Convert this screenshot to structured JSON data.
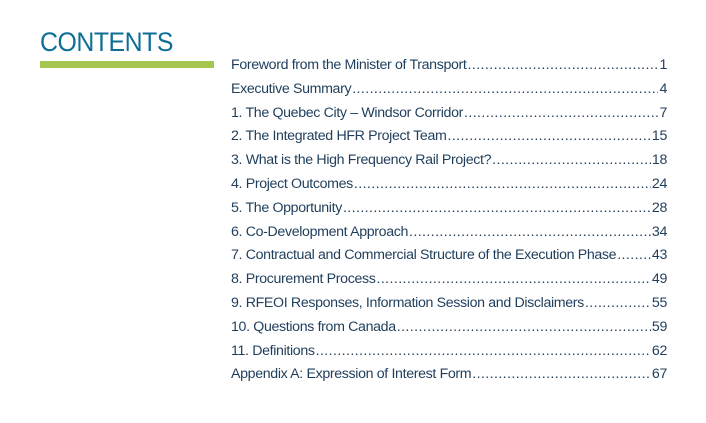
{
  "title": "CONTENTS",
  "colors": {
    "title": "#0f6e95",
    "accent_bar": "#a6c64f",
    "text": "#1f3e5c"
  },
  "entries": [
    {
      "label": "Foreword from the Minister of Transport",
      "page": "1"
    },
    {
      "label": "Executive Summary",
      "page": "4"
    },
    {
      "label": "1. The Quebec City – Windsor Corridor",
      "page": "7"
    },
    {
      "label": "2. The Integrated HFR Project Team",
      "page": "15"
    },
    {
      "label": "3. What is the High Frequency Rail Project?",
      "page": "18"
    },
    {
      "label": "4. Project Outcomes",
      "page": "24"
    },
    {
      "label": "5. The Opportunity",
      "page": "28"
    },
    {
      "label": "6. Co-Development Approach",
      "page": "34"
    },
    {
      "label": "7. Contractual and Commercial Structure of the Execution Phase",
      "page": "43"
    },
    {
      "label": "8. Procurement Process",
      "page": "49"
    },
    {
      "label": "9. RFEOI Responses, Information Session and Disclaimers",
      "page": "55"
    },
    {
      "label": "10. Questions from Canada",
      "page": "59"
    },
    {
      "label": "11. Definitions",
      "page": "62"
    },
    {
      "label": "Appendix A: Expression of Interest Form",
      "page": "67"
    }
  ]
}
